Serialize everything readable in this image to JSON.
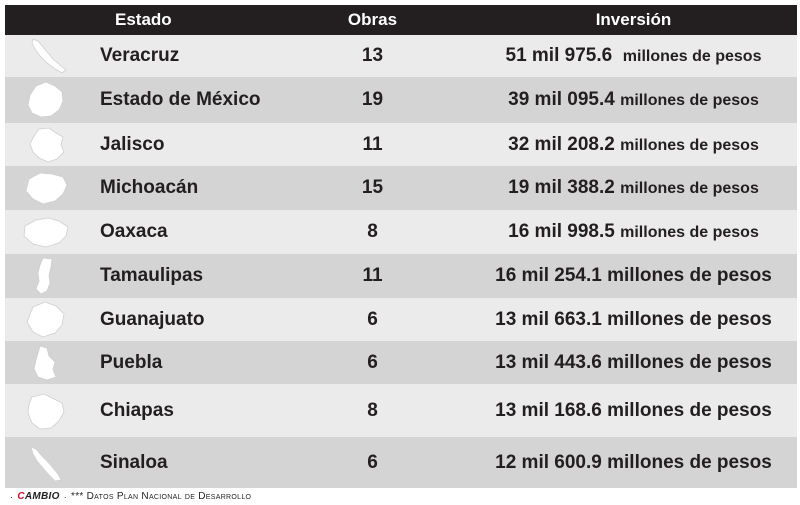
{
  "header": {
    "estado": "Estado",
    "obras": "Obras",
    "inversion": "Inversión"
  },
  "rows": [
    {
      "estado": "Veracruz",
      "obras": "13",
      "amount": "51 mil 975.6",
      "unit": "millones de pesos",
      "icon": "veracruz-map-icon"
    },
    {
      "estado": "Estado de México",
      "obras": "19",
      "amount": "39 mil 095.4",
      "unit": "millones de pesos",
      "icon": "estado-de-mexico-map-icon"
    },
    {
      "estado": "Jalisco",
      "obras": "11",
      "amount": "32 mil 208.2",
      "unit": "millones de pesos",
      "icon": "jalisco-map-icon"
    },
    {
      "estado": "Michoacán",
      "obras": "15",
      "amount": "19 mil 388.2",
      "unit": "millones de pesos",
      "icon": "michoacan-map-icon"
    },
    {
      "estado": "Oaxaca",
      "obras": "8",
      "amount": "16 mil 998.5",
      "unit": "millones de pesos",
      "icon": "oaxaca-map-icon"
    },
    {
      "estado": "Tamaulipas",
      "obras": "11",
      "amount": "16 mil 254.1",
      "unit": "millones de pesos",
      "icon": "tamaulipas-map-icon"
    },
    {
      "estado": "Guanajuato",
      "obras": "6",
      "amount": "13 mil 663.1",
      "unit": "millones de pesos",
      "icon": "guanajuato-map-icon"
    },
    {
      "estado": "Puebla",
      "obras": "6",
      "amount": "13 mil 443.6",
      "unit": "millones de pesos",
      "icon": "puebla-map-icon"
    },
    {
      "estado": "Chiapas",
      "obras": "8",
      "amount": "13 mil 168.6",
      "unit": "millones de pesos",
      "icon": "chiapas-map-icon"
    },
    {
      "estado": "Sinaloa",
      "obras": "6",
      "amount": "12 mil 600.9",
      "unit": "millones de pesos",
      "icon": "sinaloa-map-icon"
    }
  ],
  "footer": {
    "bullet": "·",
    "brand_c": "C",
    "brand_rest": "AMBIO",
    "separator": "·",
    "source": "*** Datos Plan Nacional de Desarrollo"
  },
  "colors": {
    "header_bg": "#231f20",
    "row_light": "#ebebeb",
    "row_dark": "#d4d4d4",
    "brand_red": "#c8102e"
  }
}
